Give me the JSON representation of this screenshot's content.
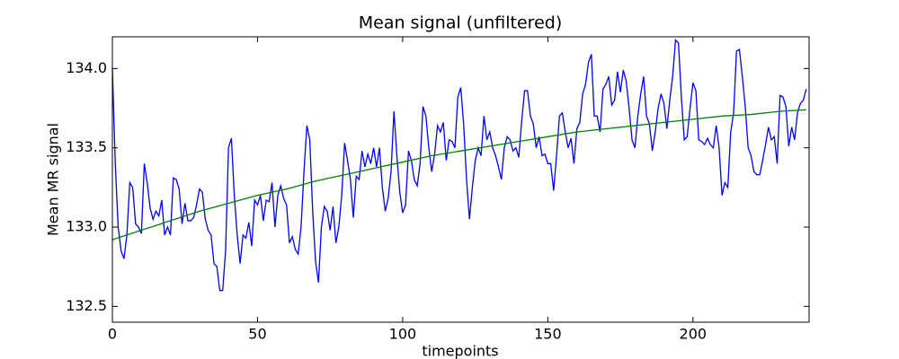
{
  "chart_data": {
    "type": "line",
    "title": "Mean signal (unfiltered)",
    "x_label": "timepoints",
    "y_label": "Mean MR signal",
    "xlim": [
      0,
      240
    ],
    "ylim": [
      132.4,
      134.2
    ],
    "xticks": [
      0,
      50,
      100,
      150,
      200
    ],
    "yticks": [
      132.5,
      {
        "value": 133.0,
        "label": "133.0"
      },
      133.5,
      {
        "value": 134.0,
        "label": "134.0"
      }
    ],
    "series": [
      {
        "color": "#0000ff",
        "x": [
          0,
          1,
          2,
          3,
          4,
          5,
          6,
          7,
          8,
          9,
          10,
          11,
          12,
          13,
          14,
          15,
          16,
          17,
          18,
          19,
          20,
          21,
          22,
          23,
          24,
          25,
          26,
          27,
          28,
          29,
          30,
          31,
          32,
          33,
          34,
          35,
          36,
          37,
          38,
          39,
          40,
          41,
          42,
          43,
          44,
          45,
          46,
          47,
          48,
          49,
          50,
          51,
          52,
          53,
          54,
          55,
          56,
          57,
          58,
          59,
          60,
          61,
          62,
          63,
          64,
          65,
          66,
          67,
          68,
          69,
          70,
          71,
          72,
          73,
          74,
          75,
          76,
          77,
          78,
          79,
          80,
          81,
          82,
          83,
          84,
          85,
          86,
          87,
          88,
          89,
          90,
          91,
          92,
          93,
          94,
          95,
          96,
          97,
          98,
          99,
          100,
          101,
          102,
          103,
          104,
          105,
          106,
          107,
          108,
          109,
          110,
          111,
          112,
          113,
          114,
          115,
          116,
          117,
          118,
          119,
          120,
          121,
          122,
          123,
          124,
          125,
          126,
          127,
          128,
          129,
          130,
          131,
          132,
          133,
          134,
          135,
          136,
          137,
          138,
          139,
          140,
          141,
          142,
          143,
          144,
          145,
          146,
          147,
          148,
          149,
          150,
          151,
          152,
          153,
          154,
          155,
          156,
          157,
          158,
          159,
          160,
          161,
          162,
          163,
          164,
          165,
          166,
          167,
          168,
          169,
          170,
          171,
          172,
          173,
          174,
          175,
          176,
          177,
          178,
          179,
          180,
          181,
          182,
          183,
          184,
          185,
          186,
          187,
          188,
          189,
          190,
          191,
          192,
          193,
          194,
          195,
          196,
          197,
          198,
          199,
          200,
          201,
          202,
          203,
          204,
          205,
          206,
          207,
          208,
          209,
          210,
          211,
          212,
          213,
          214,
          215,
          216,
          217,
          218,
          219,
          220,
          221,
          222,
          223,
          224,
          225,
          226,
          227,
          228,
          229,
          230,
          231,
          232,
          233,
          234,
          235,
          236,
          237,
          238,
          239
        ],
        "values": [
          134.0,
          133.4,
          133.0,
          132.85,
          132.8,
          132.95,
          133.28,
          133.25,
          133.02,
          133.0,
          132.96,
          133.4,
          133.28,
          133.12,
          133.05,
          133.1,
          133.07,
          133.17,
          132.95,
          133.0,
          132.95,
          133.31,
          133.3,
          133.24,
          133.02,
          133.15,
          133.04,
          133.04,
          133.06,
          133.14,
          133.24,
          133.22,
          133.05,
          132.98,
          132.95,
          132.77,
          132.75,
          132.6,
          132.6,
          132.85,
          133.5,
          133.56,
          133.2,
          132.95,
          132.77,
          132.95,
          132.93,
          133.03,
          132.88,
          133.17,
          133.14,
          133.2,
          133.04,
          133.17,
          133.16,
          133.28,
          133.0,
          133.2,
          133.26,
          133.18,
          133.14,
          132.9,
          132.94,
          132.86,
          132.83,
          133.0,
          133.35,
          133.64,
          133.55,
          133.1,
          132.78,
          132.65,
          133.0,
          133.13,
          133.1,
          132.98,
          133.13,
          132.9,
          133.0,
          133.2,
          133.53,
          133.42,
          133.3,
          133.06,
          133.32,
          133.3,
          133.48,
          133.38,
          133.46,
          133.4,
          133.5,
          133.38,
          133.5,
          133.25,
          133.1,
          133.18,
          133.35,
          133.73,
          133.45,
          133.22,
          133.09,
          133.14,
          133.48,
          133.42,
          133.3,
          133.26,
          133.4,
          133.76,
          133.7,
          133.5,
          133.35,
          133.46,
          133.64,
          133.6,
          133.66,
          133.42,
          133.55,
          133.54,
          133.5,
          133.82,
          133.88,
          133.65,
          133.3,
          133.05,
          133.25,
          133.42,
          133.5,
          133.45,
          133.7,
          133.55,
          133.6,
          133.5,
          133.45,
          133.38,
          133.3,
          133.5,
          133.57,
          133.55,
          133.48,
          133.5,
          133.44,
          133.67,
          133.86,
          133.86,
          133.7,
          133.65,
          133.5,
          133.57,
          133.45,
          133.46,
          133.4,
          133.4,
          133.23,
          133.45,
          133.7,
          133.72,
          133.6,
          133.5,
          133.56,
          133.4,
          133.62,
          133.66,
          133.84,
          133.9,
          134.04,
          134.09,
          133.7,
          133.7,
          133.6,
          133.87,
          133.9,
          133.95,
          133.77,
          133.8,
          133.98,
          133.85,
          133.99,
          133.92,
          133.75,
          133.55,
          133.5,
          133.7,
          133.84,
          133.95,
          133.7,
          133.65,
          133.48,
          133.6,
          133.75,
          133.84,
          133.78,
          133.62,
          133.8,
          133.95,
          134.18,
          134.16,
          133.82,
          133.55,
          133.57,
          133.75,
          133.91,
          133.86,
          133.55,
          133.54,
          133.52,
          133.56,
          133.52,
          133.5,
          133.64,
          133.5,
          133.2,
          133.28,
          133.25,
          133.6,
          133.72,
          134.11,
          134.12,
          133.95,
          133.76,
          133.5,
          133.45,
          133.35,
          133.33,
          133.33,
          133.42,
          133.52,
          133.63,
          133.55,
          133.57,
          133.4,
          133.83,
          133.82,
          133.76,
          133.51,
          133.63,
          133.55,
          133.72,
          133.78,
          133.8,
          133.87
        ]
      },
      {
        "color": "#008000",
        "x": [
          0,
          10,
          20,
          30,
          40,
          50,
          60,
          70,
          80,
          90,
          100,
          110,
          120,
          130,
          140,
          150,
          160,
          170,
          180,
          190,
          200,
          210,
          220,
          230,
          239
        ],
        "values": [
          132.92,
          132.98,
          133.04,
          133.1,
          133.15,
          133.2,
          133.24,
          133.29,
          133.33,
          133.37,
          133.41,
          133.45,
          133.48,
          133.51,
          133.54,
          133.57,
          133.6,
          133.62,
          133.64,
          133.66,
          133.68,
          133.7,
          133.71,
          133.73,
          133.74
        ]
      }
    ]
  }
}
